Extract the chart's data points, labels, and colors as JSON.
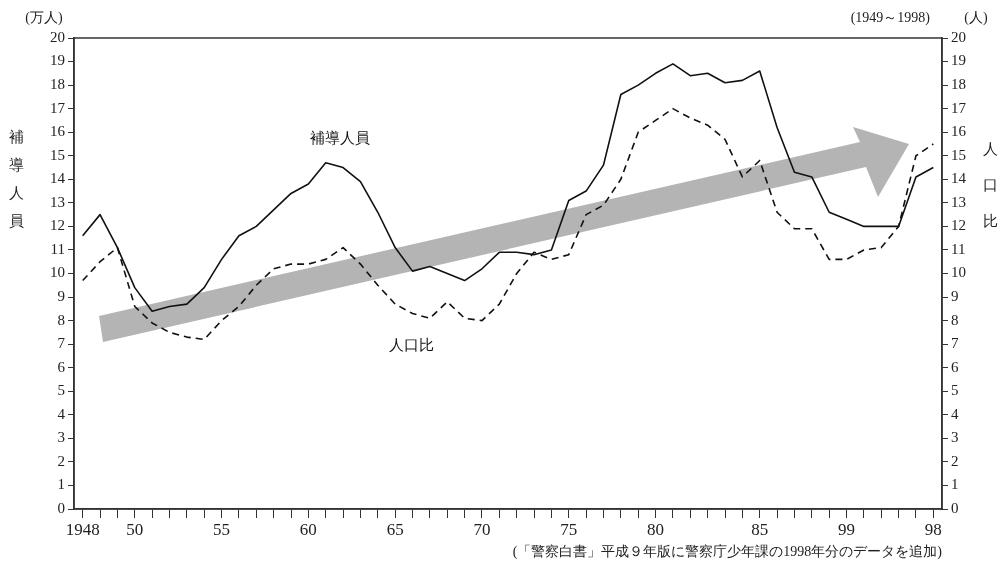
{
  "chart_data": {
    "type": "line",
    "subtitle": "(1949～1998)",
    "ylabel": "補導人員",
    "y2label": "人口比",
    "categories": [
      "1948",
      null,
      null,
      "50",
      null,
      null,
      null,
      null,
      "55",
      null,
      null,
      null,
      null,
      "60",
      null,
      null,
      null,
      null,
      "65",
      null,
      null,
      null,
      null,
      "70",
      null,
      null,
      null,
      null,
      "75",
      null,
      null,
      null,
      null,
      "80",
      null,
      null,
      null,
      null,
      null,
      "85",
      null,
      null,
      null,
      null,
      "99",
      null,
      null,
      null,
      null,
      "98"
    ],
    "ylim": [
      0,
      20
    ],
    "yticks": [
      0,
      1,
      2,
      3,
      4,
      5,
      6,
      7,
      8,
      9,
      10,
      11,
      12,
      13,
      14,
      15,
      16,
      17,
      18,
      19,
      20
    ],
    "y2lim": [
      0,
      20
    ],
    "y2ticks": [
      0,
      1,
      2,
      3,
      4,
      5,
      6,
      7,
      8,
      9,
      10,
      11,
      12,
      13,
      14,
      15,
      16,
      17,
      18,
      19,
      20
    ],
    "series": [
      {
        "name": "補導人員",
        "color": "#111111",
        "line_style": "solid",
        "values": [
          11.6,
          12.5,
          11.1,
          9.4,
          8.4,
          8.6,
          8.7,
          9.4,
          10.6,
          11.6,
          12.0,
          12.7,
          13.4,
          13.8,
          14.7,
          14.5,
          13.9,
          12.6,
          11.1,
          10.1,
          10.3,
          10.0,
          9.7,
          10.2,
          10.9,
          10.9,
          10.8,
          11.0,
          13.1,
          13.5,
          14.6,
          17.6,
          18.0,
          18.5,
          18.9,
          18.4,
          18.5,
          18.1,
          18.2,
          18.6,
          16.2,
          14.3,
          14.1,
          12.6,
          12.3,
          12.0,
          12.0,
          12.0,
          14.1,
          14.5
        ]
      },
      {
        "name": "人口比",
        "color": "#111111",
        "line_style": "dashed",
        "axis": "y2",
        "values": [
          9.7,
          10.5,
          11.1,
          8.6,
          7.9,
          7.5,
          7.3,
          7.2,
          8.0,
          8.6,
          9.5,
          10.2,
          10.4,
          10.4,
          10.6,
          11.1,
          10.4,
          9.5,
          8.7,
          8.3,
          8.1,
          8.8,
          8.1,
          8.0,
          8.7,
          10.0,
          10.9,
          10.6,
          10.8,
          12.5,
          12.9,
          14.0,
          16.0,
          16.5,
          17.0,
          16.6,
          16.3,
          15.7,
          14.1,
          14.8,
          12.6,
          11.9,
          11.9,
          10.6,
          10.6,
          11.0,
          11.1,
          12.0,
          15.0,
          15.5
        ]
      }
    ],
    "annotations": [
      "(万人)",
      "(人)",
      "(「警察白書」平成９年版に警察庁少年課の1998年分のデータを追加)"
    ],
    "grid": false,
    "legend": false,
    "marker": "none"
  }
}
